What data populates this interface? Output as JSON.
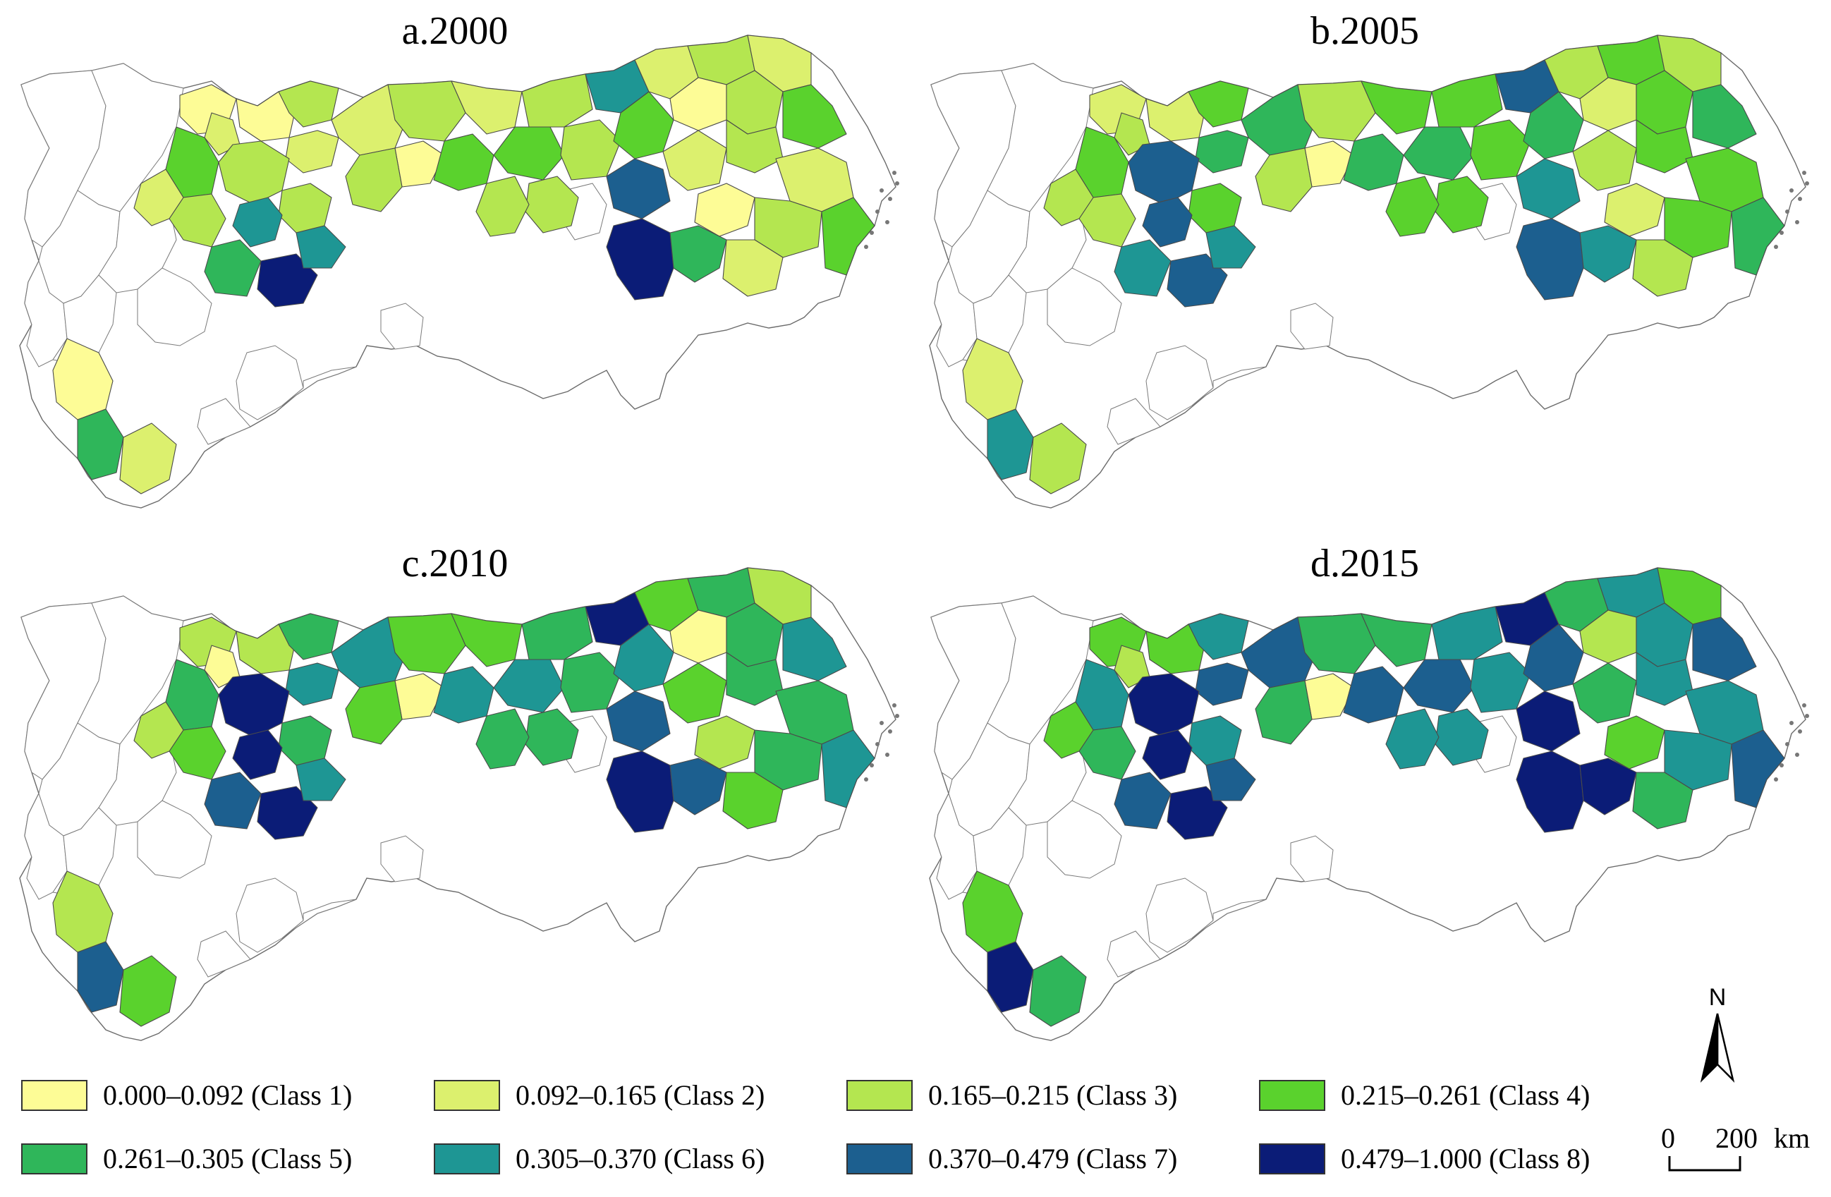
{
  "panels": [
    {
      "title": "a.2000",
      "regions": [
        1,
        2,
        1,
        3,
        2,
        2,
        3,
        4,
        3,
        2,
        3,
        5,
        6,
        8,
        6,
        3,
        1,
        3,
        4,
        2,
        3,
        4,
        3,
        6,
        2,
        3,
        2,
        1,
        3,
        4,
        4,
        7,
        8,
        2,
        1,
        3,
        2,
        3,
        4,
        5,
        2,
        3,
        3,
        1,
        5,
        2
      ]
    },
    {
      "title": "b.2005",
      "regions": [
        2,
        3,
        2,
        4,
        5,
        5,
        7,
        4,
        3,
        3,
        4,
        6,
        7,
        7,
        6,
        3,
        1,
        3,
        5,
        4,
        4,
        5,
        4,
        7,
        3,
        4,
        3,
        2,
        4,
        5,
        5,
        6,
        7,
        3,
        2,
        4,
        4,
        4,
        5,
        6,
        3,
        4,
        4,
        2,
        6,
        3
      ]
    },
    {
      "title": "c.2010",
      "regions": [
        3,
        1,
        3,
        5,
        6,
        6,
        8,
        5,
        4,
        3,
        5,
        7,
        8,
        8,
        6,
        4,
        1,
        4,
        6,
        4,
        5,
        6,
        5,
        8,
        4,
        5,
        3,
        1,
        5,
        6,
        6,
        7,
        8,
        4,
        3,
        5,
        5,
        5,
        6,
        7,
        4,
        5,
        5,
        3,
        7,
        4
      ]
    },
    {
      "title": "d.2015",
      "regions": [
        4,
        3,
        4,
        6,
        7,
        7,
        8,
        6,
        5,
        4,
        6,
        7,
        8,
        8,
        7,
        5,
        1,
        5,
        7,
        5,
        6,
        7,
        6,
        8,
        5,
        6,
        4,
        3,
        6,
        7,
        7,
        8,
        8,
        5,
        4,
        6,
        6,
        6,
        7,
        8,
        5,
        6,
        6,
        4,
        8,
        5
      ]
    }
  ],
  "legend": [
    {
      "label": "0.000–0.092 (Class 1)",
      "color": "#fdfc96"
    },
    {
      "label": "0.092–0.165 (Class 2)",
      "color": "#dcf06e"
    },
    {
      "label": "0.165–0.215 (Class 3)",
      "color": "#b4e650"
    },
    {
      "label": "0.215–0.261 (Class 4)",
      "color": "#5ad22d"
    },
    {
      "label": "0.261–0.305 (Class 5)",
      "color": "#2fb65a"
    },
    {
      "label": "0.305–0.370 (Class 6)",
      "color": "#1e9694"
    },
    {
      "label": "0.370–0.479 (Class 7)",
      "color": "#1c5f8f"
    },
    {
      "label": "0.479–1.000 (Class 8)",
      "color": "#0b1c77"
    }
  ],
  "north_arrow": {
    "letter": "N"
  },
  "scale_bar": {
    "start": "0",
    "distance": "200",
    "unit": "km"
  }
}
